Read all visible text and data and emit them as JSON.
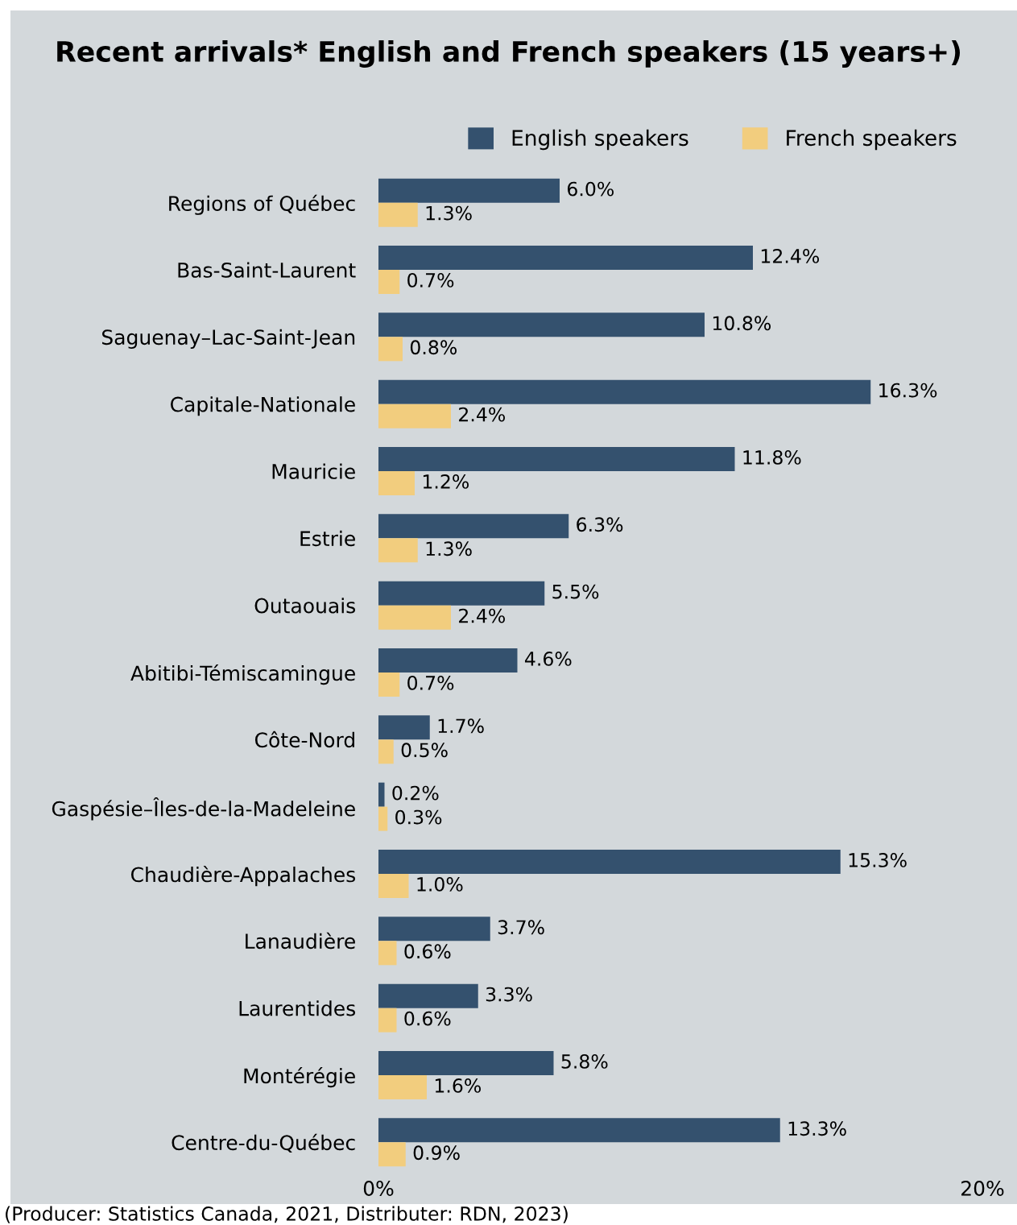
{
  "chart_data": {
    "type": "bar",
    "orientation": "horizontal",
    "title": "Recent arrivals* English and French speakers (15 years+)",
    "categories": [
      "Regions of Québec",
      "Bas-Saint-Laurent",
      "Saguenay–Lac-Saint-Jean",
      "Capitale-Nationale",
      "Mauricie",
      "Estrie",
      "Outaouais",
      "Abitibi-Témiscamingue",
      "Côte-Nord",
      "Gaspésie–Îles-de-la-Madeleine",
      "Chaudière-Appalaches",
      "Lanaudière",
      "Laurentides",
      "Montérégie",
      "Centre-du-Québec"
    ],
    "series": [
      {
        "name": "English speakers",
        "color": "#34516e",
        "values": [
          6.0,
          12.4,
          10.8,
          16.3,
          11.8,
          6.3,
          5.5,
          4.6,
          1.7,
          0.2,
          15.3,
          3.7,
          3.3,
          5.8,
          13.3
        ],
        "value_labels": [
          "6.0%",
          "12.4%",
          "10.8%",
          "16.3%",
          "11.8%",
          "6.3%",
          "5.5%",
          "4.6%",
          "1.7%",
          "0.2%",
          "15.3%",
          "3.7%",
          "3.3%",
          "5.8%",
          "13.3%"
        ]
      },
      {
        "name": "French speakers",
        "color": "#f2cd7e",
        "values": [
          1.3,
          0.7,
          0.8,
          2.4,
          1.2,
          1.3,
          2.4,
          0.7,
          0.5,
          0.3,
          1.0,
          0.6,
          0.6,
          1.6,
          0.9
        ],
        "value_labels": [
          "1.3%",
          "0.7%",
          "0.8%",
          "2.4%",
          "1.2%",
          "1.3%",
          "2.4%",
          "0.7%",
          "0.5%",
          "0.3%",
          "1.0%",
          "0.6%",
          "0.6%",
          "1.6%",
          "0.9%"
        ]
      }
    ],
    "xlim": [
      0,
      20
    ],
    "xticks": [
      {
        "value": 0,
        "label": "0%"
      },
      {
        "value": 20,
        "label": "20%"
      }
    ],
    "grid": false,
    "legend": "top right",
    "annotations": [
      "(Producer: Statistics Canada, 2021, Distributer: RDN, 2023)"
    ]
  }
}
